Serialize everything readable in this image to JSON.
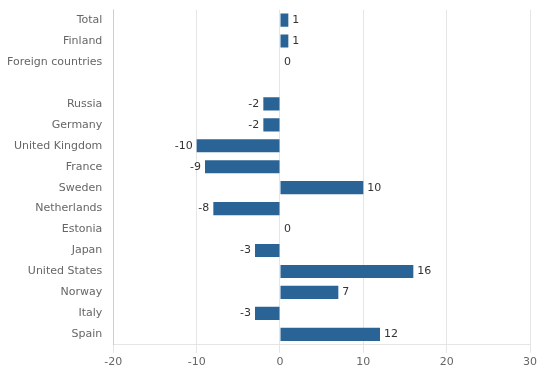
{
  "chart_data": {
    "type": "bar",
    "orientation": "horizontal",
    "categories": [
      "Total",
      "Finland",
      "Foreign countries",
      null,
      "Russia",
      "Germany",
      "United Kingdom",
      "France",
      "Sweden",
      "Netherlands",
      "Estonia",
      "Japan",
      "United States",
      "Norway",
      "Italy",
      "Spain"
    ],
    "values": [
      1,
      1,
      0,
      null,
      -2,
      -2,
      -10,
      -9,
      10,
      -8,
      0,
      -3,
      16,
      7,
      -3,
      12
    ],
    "color": "#2a6496",
    "xlim": [
      -20,
      30
    ],
    "xticks": [
      -20,
      -10,
      0,
      10,
      20,
      30
    ],
    "grid": true,
    "data_labels": true
  }
}
